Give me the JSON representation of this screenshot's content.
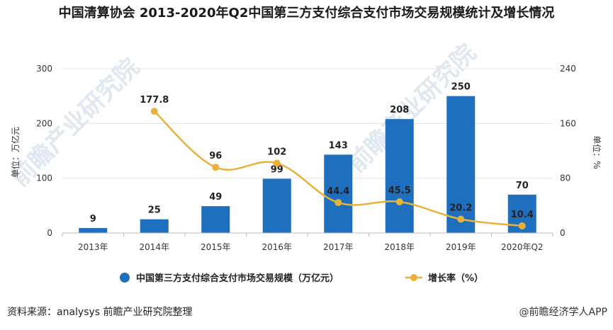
{
  "chart_data": {
    "type": "bar+line",
    "title": "中国清算协会 2013-2020年Q2中国第三方支付综合支付市场交易规模统计及增长情况",
    "categories": [
      "2013年",
      "2014年",
      "2015年",
      "2016年",
      "2017年",
      "2018年",
      "2019年",
      "2020年Q2"
    ],
    "series": [
      {
        "name": "中国第三方支付综合支付市场交易规模（万亿元）",
        "type": "bar",
        "axis": "left",
        "values": [
          9,
          25,
          49,
          99,
          143,
          208,
          250,
          70
        ],
        "labels": [
          "9",
          "25",
          "49",
          "99",
          "143",
          "208",
          "250",
          "70"
        ]
      },
      {
        "name": "增长率（%）",
        "type": "line",
        "axis": "right",
        "values": [
          null,
          177.8,
          96,
          102,
          44.4,
          45.5,
          20.2,
          10.4
        ],
        "labels": [
          "",
          "177.8",
          "96",
          "102",
          "44.4",
          "45.5",
          "20.2",
          "10.4"
        ]
      }
    ],
    "ylabel_left": "单位：万亿元",
    "ylabel_right": "单位：%",
    "ylim_left": [
      0,
      300
    ],
    "ylim_right": [
      0,
      240
    ],
    "yticks_left": [
      "0",
      "100",
      "200",
      "300"
    ],
    "yticks_right": [
      "0",
      "80",
      "160",
      "240"
    ],
    "grid": true,
    "legend": "bottom",
    "colors": {
      "bar": "#1f6fbf",
      "line": "#e8b13c",
      "grid": "#e3e3e3"
    }
  },
  "footer": {
    "source": "资料来源：analysys 前瞻产业研究院整理",
    "brand": "@前瞻经济学人APP"
  }
}
